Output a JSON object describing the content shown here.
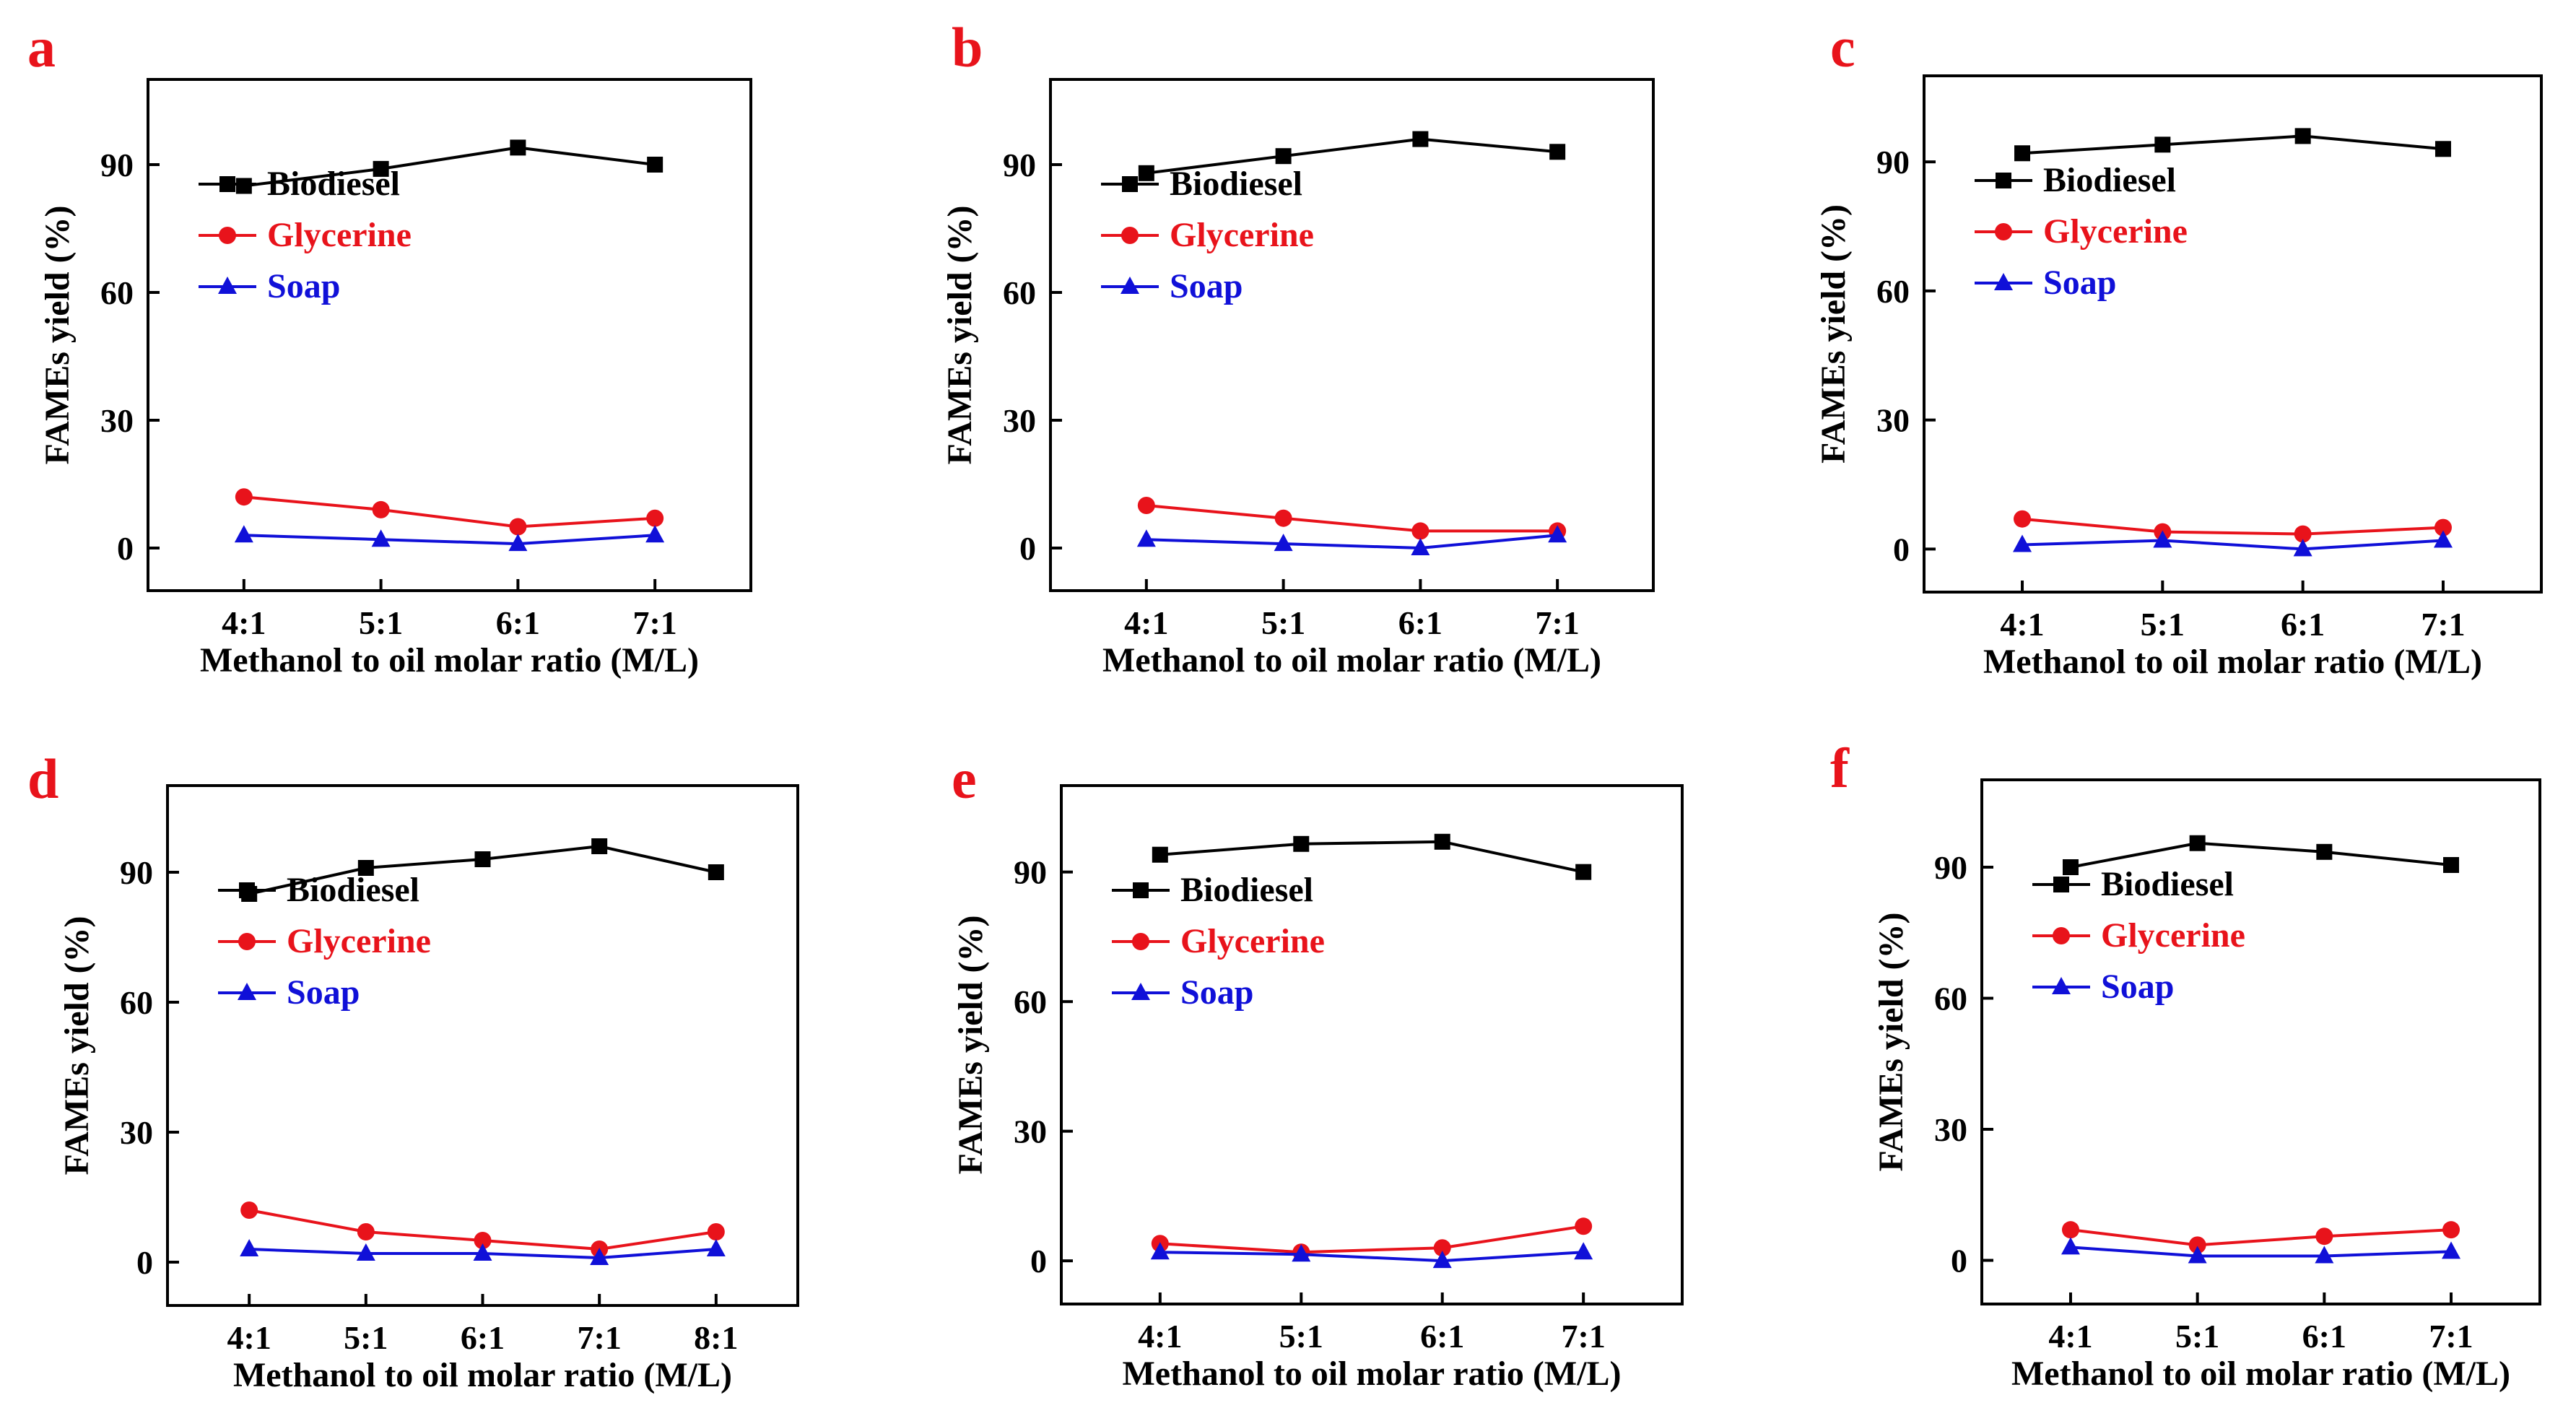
{
  "series_colors": {
    "Biodiesel": "#000000",
    "Glycerine": "#e8131b",
    "Soap": "#1010d8"
  },
  "chart_data": [
    {
      "panel": "a",
      "type": "line",
      "xlabel": "Methanol to oil molar ratio (M/L)",
      "ylabel": "FAMEs yield (%)",
      "categories": [
        "4:1",
        "5:1",
        "6:1",
        "7:1"
      ],
      "yticks": [
        0,
        30,
        60,
        90
      ],
      "ylim": [
        -10,
        110
      ],
      "legend": "center-left",
      "series": [
        {
          "name": "Biodiesel",
          "marker": "square",
          "values": [
            85,
            89,
            94,
            90
          ]
        },
        {
          "name": "Glycerine",
          "marker": "circle",
          "values": [
            12,
            9,
            5,
            7
          ]
        },
        {
          "name": "Soap",
          "marker": "triangle",
          "values": [
            3,
            2,
            1,
            3
          ]
        }
      ]
    },
    {
      "panel": "b",
      "type": "line",
      "xlabel": "Methanol to oil molar ratio (M/L)",
      "ylabel": "FAMEs yield (%)",
      "categories": [
        "4:1",
        "5:1",
        "6:1",
        "7:1"
      ],
      "yticks": [
        0,
        30,
        60,
        90
      ],
      "ylim": [
        -10,
        110
      ],
      "legend": "center-left",
      "series": [
        {
          "name": "Biodiesel",
          "marker": "square",
          "values": [
            88,
            92,
            96,
            93
          ]
        },
        {
          "name": "Glycerine",
          "marker": "circle",
          "values": [
            10,
            7,
            4,
            4
          ]
        },
        {
          "name": "Soap",
          "marker": "triangle",
          "values": [
            2,
            1,
            0,
            3
          ]
        }
      ]
    },
    {
      "panel": "c",
      "type": "line",
      "xlabel": "Methanol to oil molar ratio (M/L)",
      "ylabel": "FAMEs yield (%)",
      "categories": [
        "4:1",
        "5:1",
        "6:1",
        "7:1"
      ],
      "yticks": [
        0,
        30,
        60,
        90
      ],
      "ylim": [
        -10,
        110
      ],
      "legend": "center-left",
      "series": [
        {
          "name": "Biodiesel",
          "marker": "square",
          "values": [
            92,
            94,
            96,
            93
          ]
        },
        {
          "name": "Glycerine",
          "marker": "circle",
          "values": [
            7,
            4,
            3.5,
            5
          ]
        },
        {
          "name": "Soap",
          "marker": "triangle",
          "values": [
            1,
            2,
            0,
            2
          ]
        }
      ]
    },
    {
      "panel": "d",
      "type": "line",
      "xlabel": "Methanol to oil molar ratio (M/L)",
      "ylabel": "FAMEs yield (%)",
      "categories": [
        "4:1",
        "5:1",
        "6:1",
        "7:1",
        "8:1"
      ],
      "yticks": [
        0,
        30,
        60,
        90
      ],
      "ylim": [
        -10,
        110
      ],
      "legend": "center-left",
      "series": [
        {
          "name": "Biodiesel",
          "marker": "square",
          "values": [
            85,
            91,
            93,
            96,
            90
          ]
        },
        {
          "name": "Glycerine",
          "marker": "circle",
          "values": [
            12,
            7,
            5,
            3,
            7
          ]
        },
        {
          "name": "Soap",
          "marker": "triangle",
          "values": [
            3,
            2,
            2,
            1,
            3
          ]
        }
      ]
    },
    {
      "panel": "e",
      "type": "line",
      "xlabel": "Methanol to oil molar ratio (M/L)",
      "ylabel": "FAMEs yield (%)",
      "categories": [
        "4:1",
        "5:1",
        "6:1",
        "7:1"
      ],
      "yticks": [
        0,
        30,
        60,
        90
      ],
      "ylim": [
        -10,
        110
      ],
      "legend": "center-left",
      "series": [
        {
          "name": "Biodiesel",
          "marker": "square",
          "values": [
            94,
            96.5,
            97,
            90
          ]
        },
        {
          "name": "Glycerine",
          "marker": "circle",
          "values": [
            4,
            2,
            3,
            8
          ]
        },
        {
          "name": "Soap",
          "marker": "triangle",
          "values": [
            2,
            1.5,
            0,
            2
          ]
        }
      ]
    },
    {
      "panel": "f",
      "type": "line",
      "xlabel": "Methanol to oil molar ratio (M/L)",
      "ylabel": "FAMEs yield (%)",
      "categories": [
        "4:1",
        "5:1",
        "6:1",
        "7:1"
      ],
      "yticks": [
        0,
        30,
        60,
        90
      ],
      "ylim": [
        -10,
        110
      ],
      "legend": "center-left",
      "series": [
        {
          "name": "Biodiesel",
          "marker": "square",
          "values": [
            90,
            95.5,
            93.5,
            90.5
          ]
        },
        {
          "name": "Glycerine",
          "marker": "circle",
          "values": [
            7,
            3.5,
            5.5,
            7
          ]
        },
        {
          "name": "Soap",
          "marker": "triangle",
          "values": [
            3,
            1,
            1,
            2
          ]
        }
      ]
    }
  ]
}
